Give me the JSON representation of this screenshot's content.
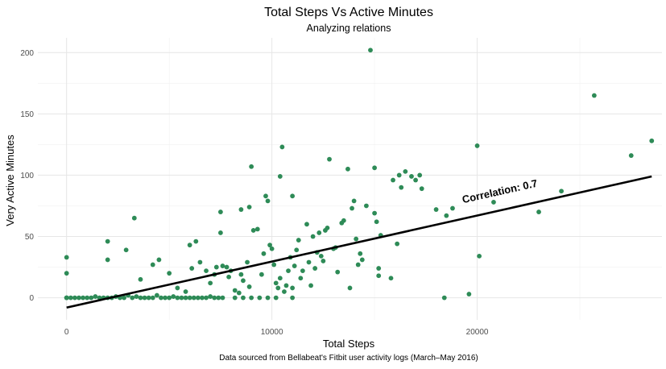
{
  "chart_data": {
    "type": "scatter",
    "title": "Total Steps Vs Active Minutes",
    "subtitle": "Analyzing relations",
    "xlabel": "Total Steps",
    "ylabel": "Very Active Minutes",
    "caption": "Data sourced from Bellabeat's Fitbit user activity logs (March–May 2016)",
    "annotation": "Correlation: 0.7",
    "x_ticks": [
      0,
      10000,
      20000
    ],
    "y_ticks": [
      0,
      50,
      100,
      150,
      200
    ],
    "x_tick_labels": [
      "0",
      "10000",
      "20000"
    ],
    "y_tick_labels": [
      "0",
      "50",
      "100",
      "150",
      "200"
    ],
    "xlim": [
      -1400,
      29000
    ],
    "ylim": [
      -18,
      212
    ],
    "grid": true,
    "point_color": "#2e8b57",
    "line_color": "#000000",
    "trend_line": [
      [
        0,
        -8
      ],
      [
        28500,
        99
      ]
    ],
    "points": [
      [
        0,
        0
      ],
      [
        0,
        0
      ],
      [
        0,
        0
      ],
      [
        0,
        33
      ],
      [
        0,
        20
      ],
      [
        200,
        0
      ],
      [
        400,
        0
      ],
      [
        600,
        0
      ],
      [
        800,
        0
      ],
      [
        1000,
        0
      ],
      [
        1200,
        0
      ],
      [
        1400,
        1
      ],
      [
        1600,
        0
      ],
      [
        1800,
        0
      ],
      [
        2000,
        0
      ],
      [
        2200,
        0
      ],
      [
        2400,
        1
      ],
      [
        2600,
        0
      ],
      [
        2800,
        0
      ],
      [
        3000,
        2
      ],
      [
        3200,
        0
      ],
      [
        3400,
        1
      ],
      [
        3600,
        0
      ],
      [
        3800,
        0
      ],
      [
        4000,
        0
      ],
      [
        4200,
        0
      ],
      [
        4400,
        2
      ],
      [
        4600,
        0
      ],
      [
        4800,
        0
      ],
      [
        5000,
        0
      ],
      [
        5200,
        1
      ],
      [
        5400,
        0
      ],
      [
        5600,
        0
      ],
      [
        5800,
        0
      ],
      [
        6000,
        0
      ],
      [
        6200,
        0
      ],
      [
        6400,
        0
      ],
      [
        6600,
        0
      ],
      [
        6800,
        0
      ],
      [
        7000,
        1
      ],
      [
        7200,
        0
      ],
      [
        7400,
        0
      ],
      [
        7600,
        0
      ],
      [
        8200,
        0
      ],
      [
        8600,
        0
      ],
      [
        9000,
        0
      ],
      [
        9400,
        0
      ],
      [
        9800,
        0
      ],
      [
        10200,
        0
      ],
      [
        11000,
        0
      ],
      [
        2000,
        46
      ],
      [
        2000,
        31
      ],
      [
        2900,
        39
      ],
      [
        3300,
        65
      ],
      [
        4200,
        27
      ],
      [
        4500,
        31
      ],
      [
        3600,
        15
      ],
      [
        5000,
        20
      ],
      [
        5400,
        8
      ],
      [
        5800,
        5
      ],
      [
        6000,
        43
      ],
      [
        6300,
        46
      ],
      [
        6100,
        24
      ],
      [
        6500,
        29
      ],
      [
        6800,
        22
      ],
      [
        7000,
        12
      ],
      [
        7200,
        19
      ],
      [
        7300,
        25
      ],
      [
        7500,
        70
      ],
      [
        7500,
        53
      ],
      [
        7600,
        26
      ],
      [
        7800,
        25
      ],
      [
        8000,
        22
      ],
      [
        7900,
        17
      ],
      [
        8200,
        6
      ],
      [
        8400,
        4
      ],
      [
        8500,
        19
      ],
      [
        8600,
        14
      ],
      [
        8800,
        29
      ],
      [
        8900,
        9
      ],
      [
        8500,
        72
      ],
      [
        8900,
        74
      ],
      [
        9000,
        107
      ],
      [
        9100,
        55
      ],
      [
        9300,
        56
      ],
      [
        9500,
        19
      ],
      [
        9600,
        36
      ],
      [
        9700,
        83
      ],
      [
        9800,
        79
      ],
      [
        9900,
        43
      ],
      [
        10000,
        40
      ],
      [
        10100,
        27
      ],
      [
        10200,
        12
      ],
      [
        10300,
        8
      ],
      [
        10400,
        16
      ],
      [
        10500,
        123
      ],
      [
        10400,
        99
      ],
      [
        10600,
        5
      ],
      [
        10700,
        10
      ],
      [
        10800,
        22
      ],
      [
        11000,
        83
      ],
      [
        11000,
        8
      ],
      [
        10900,
        33
      ],
      [
        11100,
        26
      ],
      [
        11200,
        39
      ],
      [
        11300,
        47
      ],
      [
        11400,
        16
      ],
      [
        11500,
        22
      ],
      [
        11700,
        60
      ],
      [
        11800,
        29
      ],
      [
        11900,
        10
      ],
      [
        12000,
        50
      ],
      [
        12100,
        24
      ],
      [
        12200,
        37
      ],
      [
        12300,
        53
      ],
      [
        12400,
        34
      ],
      [
        12500,
        30
      ],
      [
        12600,
        55
      ],
      [
        12700,
        57
      ],
      [
        12800,
        113
      ],
      [
        13000,
        40
      ],
      [
        13100,
        41
      ],
      [
        13200,
        21
      ],
      [
        13400,
        61
      ],
      [
        13500,
        63
      ],
      [
        13700,
        105
      ],
      [
        13800,
        8
      ],
      [
        13900,
        73
      ],
      [
        14000,
        79
      ],
      [
        14100,
        48
      ],
      [
        14200,
        27
      ],
      [
        14300,
        36
      ],
      [
        14400,
        31
      ],
      [
        14600,
        75
      ],
      [
        14800,
        202
      ],
      [
        15000,
        106
      ],
      [
        15000,
        69
      ],
      [
        15100,
        62
      ],
      [
        15200,
        24
      ],
      [
        15300,
        51
      ],
      [
        15200,
        18
      ],
      [
        15800,
        16
      ],
      [
        15900,
        96
      ],
      [
        16100,
        44
      ],
      [
        16200,
        100
      ],
      [
        16300,
        90
      ],
      [
        16500,
        103
      ],
      [
        16800,
        99
      ],
      [
        17000,
        96
      ],
      [
        17200,
        100
      ],
      [
        17300,
        89
      ],
      [
        18000,
        72
      ],
      [
        18400,
        0
      ],
      [
        18500,
        67
      ],
      [
        18800,
        73
      ],
      [
        19600,
        3
      ],
      [
        20000,
        124
      ],
      [
        20100,
        34
      ],
      [
        20800,
        78
      ],
      [
        23000,
        70
      ],
      [
        24100,
        87
      ],
      [
        25700,
        165
      ],
      [
        27500,
        116
      ],
      [
        28500,
        128
      ]
    ]
  }
}
